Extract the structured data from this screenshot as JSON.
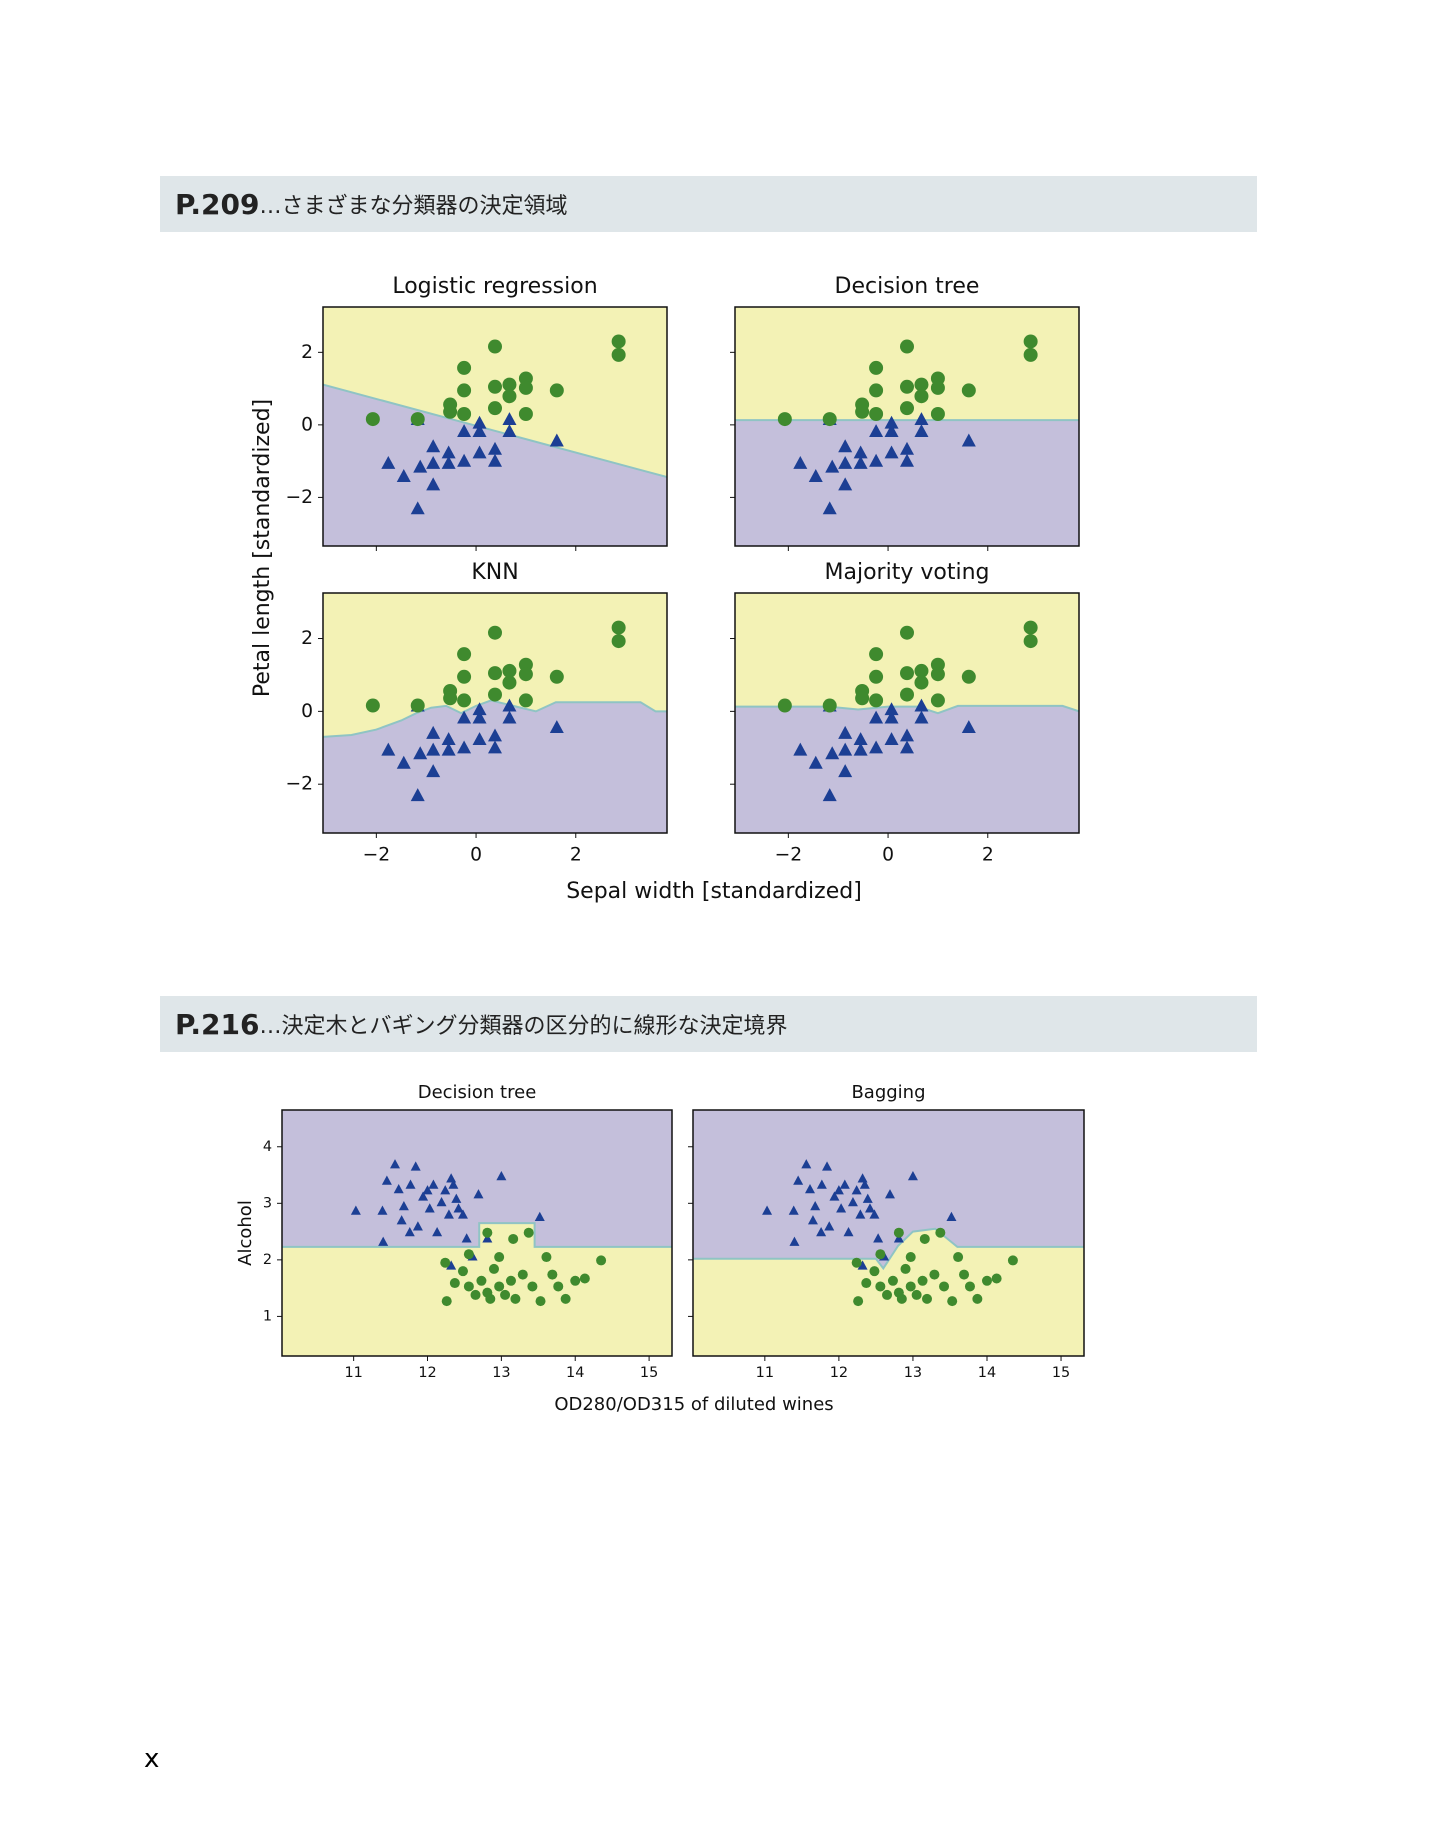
{
  "page": {
    "sections": [
      {
        "page_ref": "P.209",
        "title": "…さまざまな分類器の決定領域"
      },
      {
        "page_ref": "P.216",
        "title": "…決定木とバギング分類器の区分的に線形な決定境界"
      }
    ],
    "page_number": "x"
  },
  "chart_data": [
    {
      "type": "scatter",
      "xlabel": "Sepal width [standardized]",
      "ylabel": "Petal length [standardized]",
      "xlim": [
        -3.07,
        3.83
      ],
      "ylim": [
        -3.34,
        3.25
      ],
      "xticks": [
        {
          "value": -2,
          "label": "−2"
        },
        0,
        2
      ],
      "yticks": [
        {
          "value": -2,
          "label": "−2"
        },
        0,
        2
      ],
      "region_colors": {
        "above": "#f3f2b5",
        "below": "#c4bfdb"
      },
      "boundary_color": "#8fc4c4",
      "series": [
        {
          "marker": "triangle",
          "color": "#1c3f94",
          "x": [
            -1.76,
            -1.45,
            -1.17,
            -1.17,
            -1.12,
            -0.86,
            -0.86,
            -0.86,
            -0.55,
            -0.55,
            -0.24,
            -0.24,
            0.07,
            0.07,
            0.38,
            0.38,
            0.67,
            0.67,
            1.62,
            0.07
          ],
          "y": [
            -1.08,
            -1.44,
            0.13,
            -2.33,
            -1.18,
            -0.62,
            -1.08,
            -1.67,
            -1.08,
            -0.79,
            -1.02,
            -0.2,
            -0.79,
            -0.2,
            -0.69,
            -1.02,
            -0.2,
            0.13,
            -0.46,
            0.03
          ]
        },
        {
          "marker": "circle",
          "color": "#3f8a2e",
          "x": [
            -2.07,
            -1.17,
            -0.52,
            -0.52,
            -0.24,
            -0.24,
            -0.24,
            0.38,
            0.38,
            0.38,
            0.67,
            0.67,
            1.0,
            1.0,
            1.0,
            1.62,
            2.86,
            2.86
          ],
          "y": [
            0.16,
            0.16,
            0.56,
            0.36,
            1.57,
            0.95,
            0.3,
            2.16,
            1.05,
            0.46,
            1.11,
            0.79,
            1.28,
            1.02,
            0.3,
            0.95,
            2.3,
            1.93
          ]
        }
      ],
      "panels": [
        {
          "title": "Logistic regression",
          "boundary": {
            "x": [
              -3.07,
              3.83
            ],
            "y": [
              1.11,
              -1.44
            ]
          }
        },
        {
          "title": "Decision tree",
          "boundary": {
            "x": [
              -3.07,
              3.83
            ],
            "y": [
              0.13,
              0.13
            ]
          }
        },
        {
          "title": "KNN",
          "boundary": {
            "x": [
              -3.07,
              -2.5,
              -2,
              -1.5,
              -1.2,
              -0.9,
              -0.6,
              -0.3,
              0,
              0.3,
              0.6,
              0.9,
              1.2,
              1.6,
              3.3,
              3.6,
              3.83
            ],
            "y": [
              -0.7,
              -0.65,
              -0.5,
              -0.25,
              -0.05,
              0.1,
              0.15,
              -0.05,
              0.15,
              0.3,
              0.2,
              0.1,
              0,
              0.25,
              0.25,
              0,
              0
            ]
          }
        },
        {
          "title": "Majority voting",
          "boundary": {
            "x": [
              -3.07,
              -1.2,
              -0.6,
              0,
              0.6,
              1.0,
              1.4,
              3.5,
              3.83
            ],
            "y": [
              0.13,
              0.13,
              0.05,
              0.13,
              0.13,
              -0.05,
              0.15,
              0.15,
              0
            ]
          }
        }
      ]
    },
    {
      "type": "scatter",
      "xlabel": "OD280/OD315 of diluted wines",
      "ylabel": "Alcohol",
      "xlim": [
        10.03,
        15.31
      ],
      "ylim": [
        0.3,
        4.65
      ],
      "xticks": [
        11,
        12,
        13,
        14,
        15
      ],
      "yticks": [
        1,
        2,
        3,
        4
      ],
      "region_colors": {
        "above": "#c4bfdb",
        "below": "#f3f2b5"
      },
      "boundary_color": "#8fc4c4",
      "series": [
        {
          "marker": "triangle",
          "color": "#1c3f94",
          "x": [
            11.03,
            11.39,
            11.45,
            11.56,
            11.61,
            11.65,
            11.68,
            11.77,
            11.84,
            11.87,
            11.94,
            12.0,
            12.03,
            12.08,
            12.13,
            12.19,
            12.24,
            12.29,
            12.32,
            12.35,
            12.39,
            12.42,
            12.48,
            12.53,
            12.69,
            12.81,
            13.0,
            13.52,
            11.4,
            11.76,
            12.61,
            12.32
          ],
          "y": [
            2.86,
            2.86,
            3.39,
            3.68,
            3.24,
            2.69,
            2.94,
            3.32,
            3.64,
            2.58,
            3.11,
            3.22,
            2.9,
            3.32,
            2.48,
            3.01,
            3.22,
            2.79,
            3.43,
            3.32,
            3.07,
            2.9,
            2.79,
            2.37,
            3.15,
            2.37,
            3.47,
            2.75,
            2.31,
            2.48,
            2.05,
            1.89
          ]
        },
        {
          "marker": "circle",
          "color": "#3f8a2e",
          "x": [
            12.26,
            12.37,
            12.48,
            12.56,
            12.65,
            12.73,
            12.81,
            12.85,
            12.9,
            12.97,
            13.05,
            13.13,
            13.19,
            13.29,
            13.37,
            13.42,
            13.53,
            13.61,
            13.69,
            13.77,
            13.87,
            14.0,
            14.13,
            14.35,
            12.56,
            13.16,
            12.24,
            12.97,
            12.81
          ],
          "y": [
            1.27,
            1.59,
            1.8,
            1.53,
            1.38,
            1.63,
            1.42,
            1.31,
            1.84,
            1.53,
            1.38,
            1.63,
            1.31,
            1.74,
            2.48,
            1.53,
            1.27,
            2.05,
            1.74,
            1.53,
            1.31,
            1.63,
            1.67,
            1.99,
            2.1,
            2.37,
            1.95,
            2.05,
            2.48
          ]
        }
      ],
      "panels": [
        {
          "title": "Decision tree",
          "boundary": {
            "x": [
              10.03,
              12.7,
              12.7,
              13.45,
              13.45,
              15.31
            ],
            "y": [
              2.23,
              2.23,
              2.65,
              2.65,
              2.23,
              2.23
            ]
          }
        },
        {
          "title": "Bagging",
          "boundary": {
            "x": [
              10.03,
              12.5,
              12.6,
              12.8,
              13.0,
              13.3,
              13.6,
              15.31
            ],
            "y": [
              2.02,
              2.02,
              1.85,
              2.25,
              2.5,
              2.55,
              2.23,
              2.23
            ]
          }
        }
      ]
    }
  ]
}
